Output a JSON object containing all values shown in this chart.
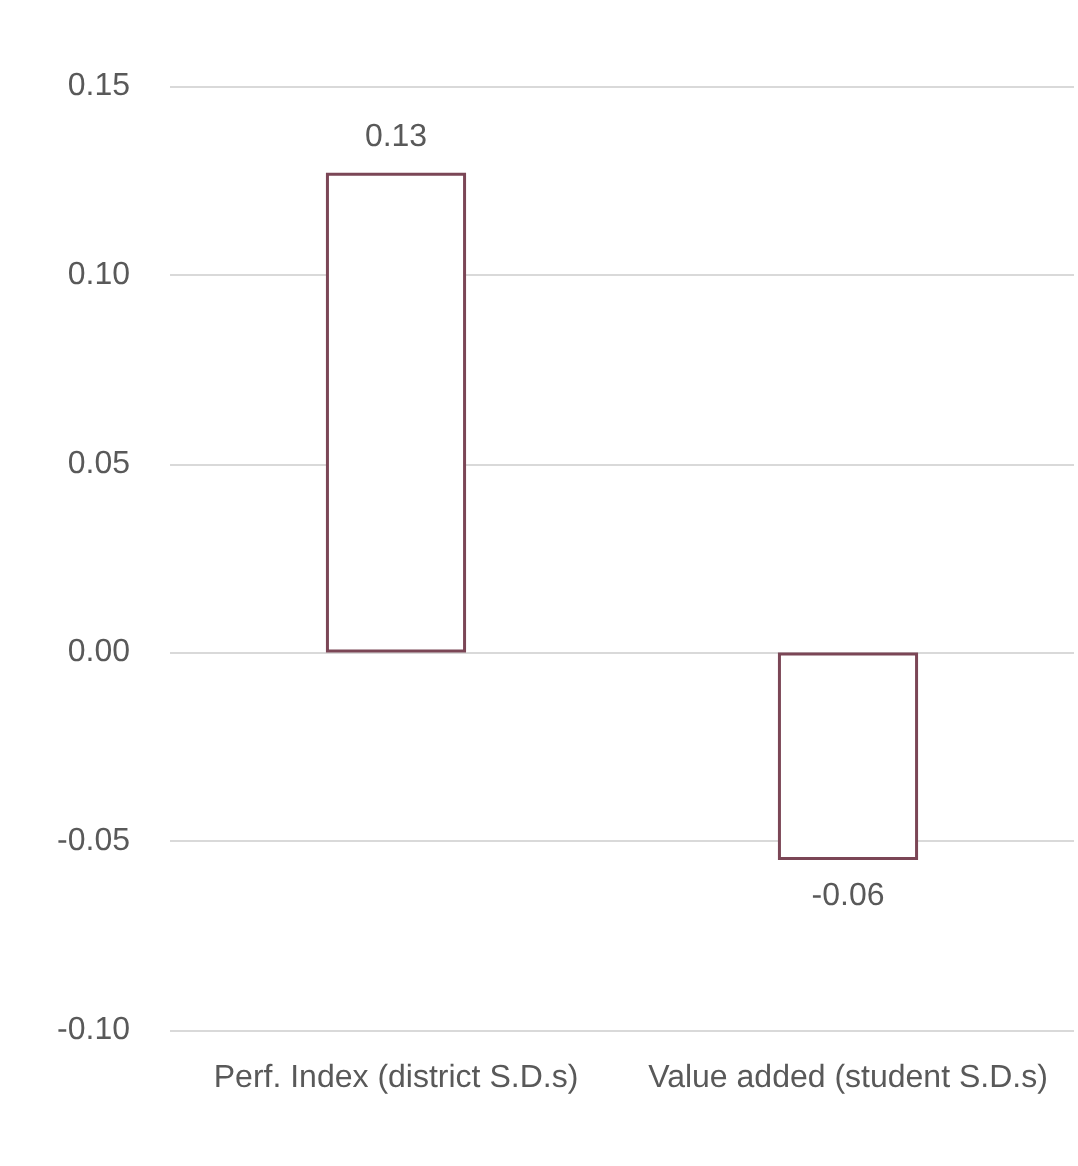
{
  "chart_data": {
    "type": "bar",
    "categories": [
      "Perf. Index (district S.D.s)",
      "Value added (student S.D.s)"
    ],
    "values": [
      0.127,
      -0.055
    ],
    "value_labels": [
      "0.13",
      "-0.06"
    ],
    "color": "#7b4656",
    "ylim": [
      -0.1,
      0.15
    ],
    "yticks": [
      {
        "value": -0.1,
        "label": "-0.10"
      },
      {
        "value": -0.05,
        "label": "-0.05"
      },
      {
        "value": 0,
        "label": "0.00"
      },
      {
        "value": 0.05,
        "label": "0.05"
      },
      {
        "value": 0.1,
        "label": "0.10"
      },
      {
        "value": 0.15,
        "label": "0.15"
      }
    ],
    "grid": true
  }
}
